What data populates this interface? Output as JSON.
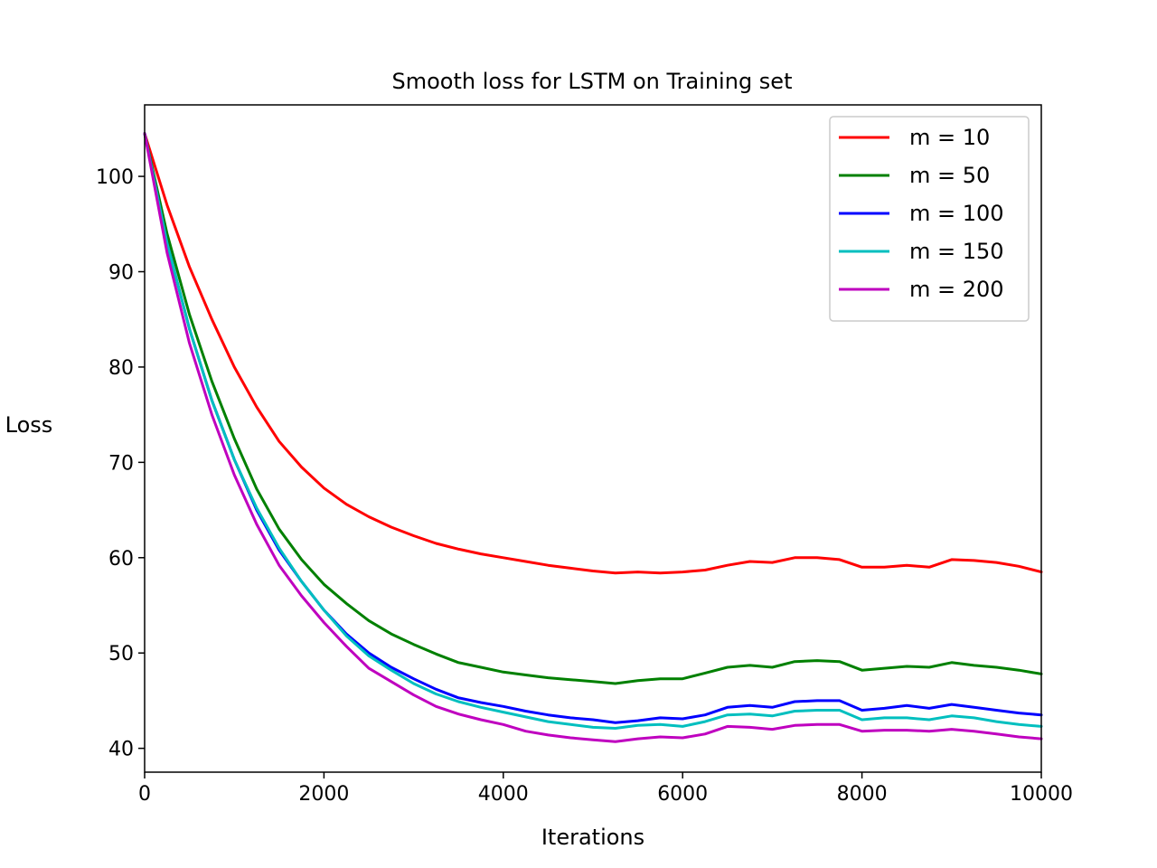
{
  "chart_data": {
    "type": "line",
    "title": "Smooth loss for LSTM on Training set",
    "xlabel": "Iterations",
    "ylabel": "Loss",
    "xlim": [
      0,
      10000
    ],
    "ylim": [
      37.5,
      107.5
    ],
    "xticks": [
      0,
      2000,
      4000,
      6000,
      8000,
      10000
    ],
    "yticks": [
      40,
      50,
      60,
      70,
      80,
      90,
      100
    ],
    "grid": false,
    "legend_position": "top-right",
    "x": [
      0,
      250,
      500,
      750,
      1000,
      1250,
      1500,
      1750,
      2000,
      2250,
      2500,
      2750,
      3000,
      3250,
      3500,
      3750,
      4000,
      4250,
      4500,
      4750,
      5000,
      5250,
      5500,
      5750,
      6000,
      6250,
      6500,
      6750,
      7000,
      7250,
      7500,
      7750,
      8000,
      8250,
      8500,
      8750,
      9000,
      9250,
      9500,
      9750,
      10000
    ],
    "series": [
      {
        "name": "m = 10",
        "color": "#ff0000",
        "values": [
          104.5,
          97.0,
          90.5,
          85.0,
          80.0,
          75.8,
          72.2,
          69.5,
          67.3,
          65.6,
          64.3,
          63.2,
          62.3,
          61.5,
          60.9,
          60.4,
          60.0,
          59.6,
          59.2,
          58.9,
          58.6,
          58.4,
          58.5,
          58.4,
          58.5,
          58.7,
          59.2,
          59.6,
          59.5,
          60.0,
          60.0,
          59.8,
          59.0,
          59.0,
          59.2,
          59.0,
          59.8,
          59.7,
          59.5,
          59.1,
          58.5
        ]
      },
      {
        "name": "m = 50",
        "color": "#008000",
        "values": [
          104.5,
          94.0,
          85.5,
          78.5,
          72.5,
          67.2,
          63.0,
          59.8,
          57.2,
          55.2,
          53.4,
          52.0,
          50.9,
          49.9,
          49.0,
          48.5,
          48.0,
          47.7,
          47.4,
          47.2,
          47.0,
          46.8,
          47.1,
          47.3,
          47.3,
          47.9,
          48.5,
          48.7,
          48.5,
          49.1,
          49.2,
          49.1,
          48.2,
          48.4,
          48.6,
          48.5,
          49.0,
          48.7,
          48.5,
          48.2,
          47.8
        ]
      },
      {
        "name": "m = 100",
        "color": "#0000ff",
        "values": [
          104.5,
          93.0,
          84.0,
          76.5,
          70.3,
          65.0,
          60.8,
          57.5,
          54.5,
          52.0,
          50.0,
          48.5,
          47.3,
          46.2,
          45.3,
          44.8,
          44.4,
          43.9,
          43.5,
          43.2,
          43.0,
          42.7,
          42.9,
          43.2,
          43.1,
          43.5,
          44.3,
          44.5,
          44.3,
          44.9,
          45.0,
          45.0,
          44.0,
          44.2,
          44.5,
          44.2,
          44.6,
          44.3,
          44.0,
          43.7,
          43.5
        ]
      },
      {
        "name": "m = 150",
        "color": "#00bfbf",
        "values": [
          104.5,
          93.0,
          84.0,
          76.5,
          70.3,
          65.2,
          61.0,
          57.5,
          54.5,
          51.8,
          49.7,
          48.2,
          46.8,
          45.7,
          44.9,
          44.3,
          43.8,
          43.3,
          42.8,
          42.5,
          42.2,
          42.1,
          42.4,
          42.5,
          42.3,
          42.8,
          43.5,
          43.6,
          43.4,
          43.9,
          44.0,
          44.0,
          43.0,
          43.2,
          43.2,
          43.0,
          43.4,
          43.2,
          42.8,
          42.5,
          42.3
        ]
      },
      {
        "name": "m = 200",
        "color": "#bf00bf",
        "values": [
          104.5,
          92.0,
          82.5,
          75.0,
          68.7,
          63.5,
          59.2,
          56.0,
          53.2,
          50.7,
          48.4,
          47.0,
          45.6,
          44.4,
          43.6,
          43.0,
          42.5,
          41.8,
          41.4,
          41.1,
          40.9,
          40.7,
          41.0,
          41.2,
          41.1,
          41.5,
          42.3,
          42.2,
          42.0,
          42.4,
          42.5,
          42.5,
          41.8,
          41.9,
          41.9,
          41.8,
          42.0,
          41.8,
          41.5,
          41.2,
          41.0
        ]
      }
    ]
  }
}
